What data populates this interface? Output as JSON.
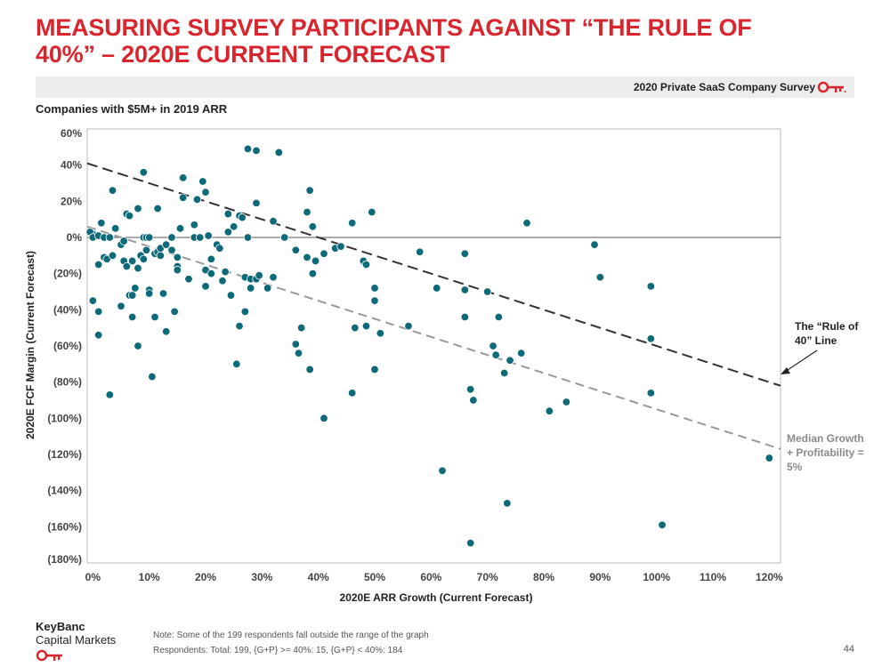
{
  "header": {
    "title_line1": "MEASURING SURVEY PARTICIPANTS AGAINST “THE RULE OF",
    "title_line2": "40%” – 2020E CURRENT FORECAST",
    "banner_text": "2020 Private SaaS Company Survey",
    "subtitle": "Companies with $5M+ in 2019 ARR"
  },
  "footer": {
    "note": "Note: Some of the 199 respondents fall outside the range of the graph",
    "respondents": "Respondents: Total: 199, {G+P} >= 40%: 15, {G+P} < 40%: 184",
    "logo_line1": "KeyBanc",
    "logo_line2": "Capital Markets",
    "page_number": "44"
  },
  "colors": {
    "title": "#d9262e",
    "points": "#0e6a78",
    "rule_line": "#333333",
    "median_line": "#999999",
    "key_logo": "#d9262e"
  },
  "icons": {
    "banner": "key-icon",
    "logo": "key-icon"
  },
  "chart_data": {
    "type": "scatter",
    "xlabel": "2020E ARR Growth (Current Forecast)",
    "ylabel": "2020E FCF Margin (Current Forecast)",
    "xlim": [
      -0.01,
      1.22
    ],
    "ylim": [
      -1.8,
      0.6
    ],
    "x_ticks": [
      0,
      0.1,
      0.2,
      0.3,
      0.4,
      0.5,
      0.6,
      0.7,
      0.8,
      0.9,
      1.0,
      1.1,
      1.2
    ],
    "x_tick_labels": [
      "0%",
      "10%",
      "20%",
      "30%",
      "40%",
      "50%",
      "60%",
      "70%",
      "80%",
      "90%",
      "100%",
      "110%",
      "120%"
    ],
    "y_ticks": [
      0.6,
      0.4,
      0.2,
      0,
      -0.2,
      -0.4,
      -0.6,
      -0.8,
      -1.0,
      -1.2,
      -1.4,
      -1.6,
      -1.8
    ],
    "y_tick_labels": [
      "60%",
      "40%",
      "20%",
      "0%",
      "(20%)",
      "(40%)",
      "(60%)",
      "(80%)",
      "(100%)",
      "(120%)",
      "(140%)",
      "(160%)",
      "(180%)"
    ],
    "grid": false,
    "reference_lines": [
      {
        "label": "The “Rule of 40” Line",
        "x": [
          -0.01,
          1.22
        ],
        "y": [
          0.41,
          -0.82
        ],
        "style": "dashed-dark"
      },
      {
        "label": "Median Growth + Profitability = 5%",
        "x": [
          -0.01,
          1.22
        ],
        "y": [
          0.06,
          -1.17
        ],
        "style": "dashed-light"
      }
    ],
    "annotations": {
      "rule_line_1": "The “Rule of",
      "rule_line_2": "40” Line",
      "median_line_1": "Median Growth",
      "median_line_2": "+ Profitability =",
      "median_line_3": "5%"
    },
    "points": [
      [
        0.0,
        0.02
      ],
      [
        -0.005,
        0.03
      ],
      [
        0.0,
        0.0
      ],
      [
        0.01,
        0.01
      ],
      [
        0.01,
        -0.15
      ],
      [
        0.015,
        0.08
      ],
      [
        0.02,
        -0.11
      ],
      [
        0.02,
        0.0
      ],
      [
        0.025,
        -0.12
      ],
      [
        0.03,
        0.0
      ],
      [
        0.0,
        -0.35
      ],
      [
        0.01,
        -0.41
      ],
      [
        0.01,
        -0.54
      ],
      [
        0.03,
        -0.87
      ],
      [
        0.035,
        0.26
      ],
      [
        0.04,
        0.05
      ],
      [
        0.035,
        -0.1
      ],
      [
        0.05,
        -0.04
      ],
      [
        0.05,
        -0.38
      ],
      [
        0.055,
        -0.02
      ],
      [
        0.055,
        -0.13
      ],
      [
        0.06,
        0.13
      ],
      [
        0.06,
        -0.16
      ],
      [
        0.065,
        0.12
      ],
      [
        0.065,
        -0.32
      ],
      [
        0.07,
        -0.13
      ],
      [
        0.07,
        -0.32
      ],
      [
        0.07,
        -0.44
      ],
      [
        0.075,
        -0.28
      ],
      [
        0.08,
        -0.17
      ],
      [
        0.08,
        0.16
      ],
      [
        0.08,
        -0.6
      ],
      [
        0.085,
        -0.1
      ],
      [
        0.09,
        0.0
      ],
      [
        0.09,
        -0.12
      ],
      [
        0.09,
        0.36
      ],
      [
        0.095,
        0.0
      ],
      [
        0.095,
        -0.07
      ],
      [
        0.1,
        -0.29
      ],
      [
        0.1,
        -0.31
      ],
      [
        0.1,
        0.0
      ],
      [
        0.105,
        -0.77
      ],
      [
        0.11,
        -0.44
      ],
      [
        0.11,
        -0.09
      ],
      [
        0.115,
        -0.08
      ],
      [
        0.115,
        0.16
      ],
      [
        0.12,
        -0.1
      ],
      [
        0.12,
        -0.06
      ],
      [
        0.125,
        -0.31
      ],
      [
        0.13,
        -0.52
      ],
      [
        0.13,
        -0.04
      ],
      [
        0.14,
        -0.07
      ],
      [
        0.14,
        0.0
      ],
      [
        0.145,
        -0.41
      ],
      [
        0.15,
        -0.11
      ],
      [
        0.15,
        -0.16
      ],
      [
        0.15,
        -0.18
      ],
      [
        0.155,
        0.05
      ],
      [
        0.16,
        0.22
      ],
      [
        0.16,
        0.33
      ],
      [
        0.17,
        -0.23
      ],
      [
        0.18,
        0.07
      ],
      [
        0.18,
        0.0
      ],
      [
        0.185,
        0.21
      ],
      [
        0.19,
        0.0
      ],
      [
        0.195,
        0.31
      ],
      [
        0.2,
        0.25
      ],
      [
        0.2,
        -0.18
      ],
      [
        0.2,
        -0.27
      ],
      [
        0.205,
        0.01
      ],
      [
        0.21,
        -0.12
      ],
      [
        0.21,
        -0.2
      ],
      [
        0.22,
        -0.04
      ],
      [
        0.225,
        -0.06
      ],
      [
        0.23,
        -0.24
      ],
      [
        0.235,
        -0.19
      ],
      [
        0.24,
        0.03
      ],
      [
        0.24,
        0.13
      ],
      [
        0.245,
        -0.32
      ],
      [
        0.25,
        0.06
      ],
      [
        0.255,
        -0.7
      ],
      [
        0.26,
        0.12
      ],
      [
        0.26,
        -0.49
      ],
      [
        0.265,
        0.11
      ],
      [
        0.27,
        -0.41
      ],
      [
        0.27,
        -0.22
      ],
      [
        0.275,
        0.49
      ],
      [
        0.275,
        0.0
      ],
      [
        0.28,
        -0.23
      ],
      [
        0.28,
        -0.28
      ],
      [
        0.29,
        -0.23
      ],
      [
        0.29,
        0.48
      ],
      [
        0.29,
        0.19
      ],
      [
        0.295,
        -0.21
      ],
      [
        0.31,
        -0.28
      ],
      [
        0.32,
        0.09
      ],
      [
        0.32,
        -0.22
      ],
      [
        0.33,
        0.47
      ],
      [
        0.34,
        0.0
      ],
      [
        0.36,
        -0.59
      ],
      [
        0.36,
        -0.07
      ],
      [
        0.365,
        -0.64
      ],
      [
        0.37,
        -0.5
      ],
      [
        0.38,
        -0.11
      ],
      [
        0.38,
        0.14
      ],
      [
        0.385,
        0.26
      ],
      [
        0.385,
        -0.73
      ],
      [
        0.39,
        0.06
      ],
      [
        0.39,
        -0.2
      ],
      [
        0.395,
        -0.13
      ],
      [
        0.41,
        -0.09
      ],
      [
        0.41,
        -1.0
      ],
      [
        0.43,
        -0.06
      ],
      [
        0.44,
        -0.05
      ],
      [
        0.46,
        -0.86
      ],
      [
        0.46,
        0.08
      ],
      [
        0.465,
        -0.5
      ],
      [
        0.48,
        -0.13
      ],
      [
        0.485,
        -0.15
      ],
      [
        0.485,
        -0.49
      ],
      [
        0.495,
        0.14
      ],
      [
        0.5,
        -0.28
      ],
      [
        0.5,
        -0.35
      ],
      [
        0.5,
        -0.73
      ],
      [
        0.51,
        -0.53
      ],
      [
        0.56,
        -0.49
      ],
      [
        0.58,
        -0.08
      ],
      [
        0.61,
        -0.28
      ],
      [
        0.62,
        -1.29
      ],
      [
        0.66,
        -0.09
      ],
      [
        0.66,
        -0.29
      ],
      [
        0.66,
        -0.44
      ],
      [
        0.67,
        -0.84
      ],
      [
        0.675,
        -0.9
      ],
      [
        0.67,
        -1.69
      ],
      [
        0.7,
        -0.3
      ],
      [
        0.71,
        -0.6
      ],
      [
        0.715,
        -0.65
      ],
      [
        0.72,
        -0.44
      ],
      [
        0.73,
        -0.75
      ],
      [
        0.735,
        -1.47
      ],
      [
        0.74,
        -0.68
      ],
      [
        0.76,
        -0.64
      ],
      [
        0.77,
        0.08
      ],
      [
        0.81,
        -0.96
      ],
      [
        0.84,
        -0.91
      ],
      [
        0.89,
        -0.04
      ],
      [
        0.9,
        -0.22
      ],
      [
        0.99,
        -0.27
      ],
      [
        0.99,
        -0.56
      ],
      [
        0.99,
        -0.86
      ],
      [
        1.01,
        -1.59
      ],
      [
        1.2,
        -1.22
      ]
    ]
  }
}
